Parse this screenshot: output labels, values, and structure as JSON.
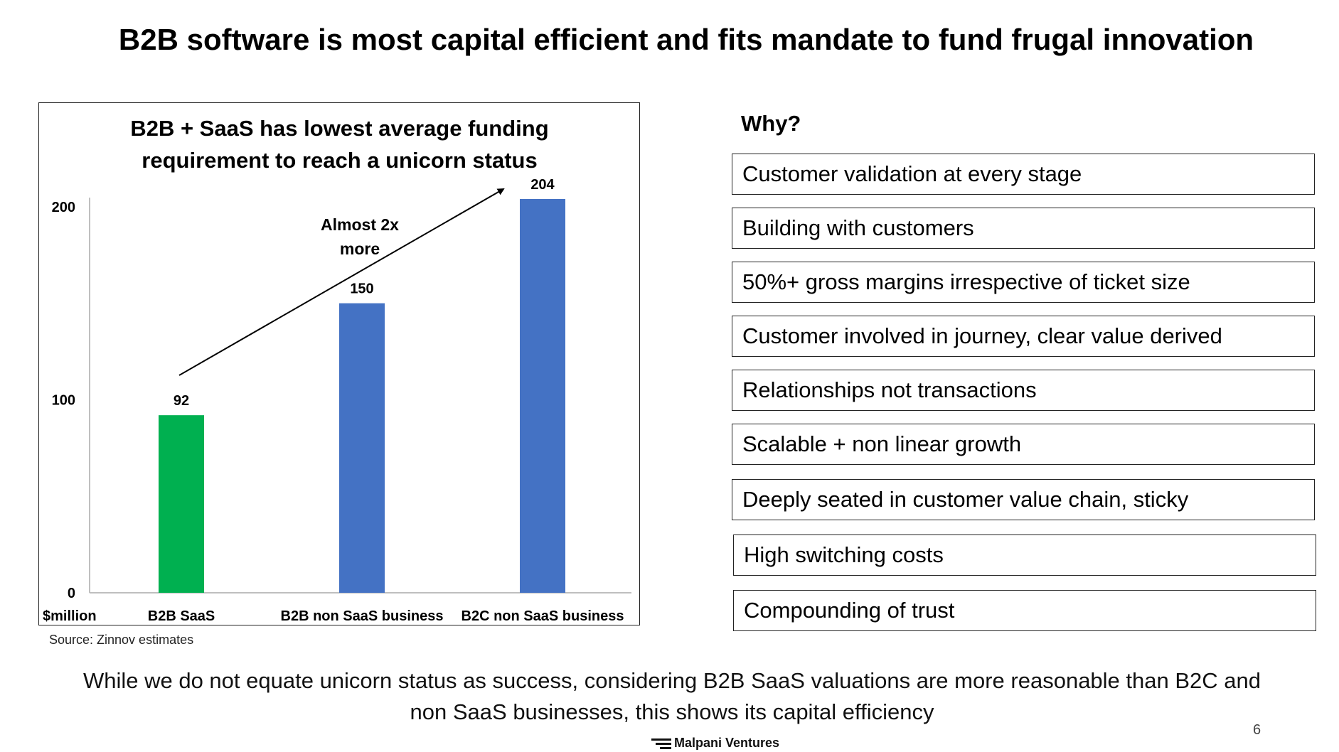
{
  "slide": {
    "title": "B2B software is most capital efficient and fits mandate to fund frugal innovation",
    "page_number": "6",
    "footer_line1": "While we do not equate unicorn status as success, considering B2B SaaS valuations are more reasonable than B2C and",
    "footer_line2": "non SaaS businesses, this shows its capital efficiency",
    "logo_text": "Malpani Ventures"
  },
  "chart_data": {
    "type": "bar",
    "title_line1": "B2B + SaaS has lowest average funding",
    "title_line2": "requirement to reach a unicorn status",
    "categories": [
      "B2B SaaS",
      "B2B non SaaS business",
      "B2C non SaaS business"
    ],
    "values": [
      92,
      150,
      204
    ],
    "bar_colors": [
      "#00B050",
      "#4472C4",
      "#4472C4"
    ],
    "data_labels": [
      "92",
      "150",
      "204"
    ],
    "y_ticks": [
      "0",
      "100",
      "200"
    ],
    "y_tick_values": [
      0,
      100,
      200
    ],
    "ylim": [
      0,
      210
    ],
    "unit_label": "$million",
    "annotation_line1": "Almost 2x",
    "annotation_line2": "more",
    "source": "Source: Zinnov estimates",
    "grid": false,
    "legend": "none"
  },
  "why": {
    "heading": "Why?",
    "reasons": [
      "Customer validation at every stage",
      "Building with customers",
      "50%+ gross margins irrespective of ticket size",
      "Customer involved in journey, clear value derived",
      "Relationships not transactions",
      "Scalable + non linear growth",
      "Deeply seated in customer value chain, sticky",
      "High switching costs",
      "Compounding of trust"
    ]
  }
}
